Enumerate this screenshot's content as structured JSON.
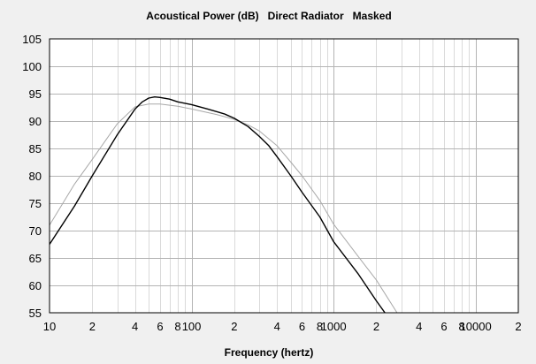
{
  "chart_data": {
    "type": "line",
    "title": "Acoustical Power (dB)   Direct Radiator   Masked",
    "xlabel": "Frequency (hertz)",
    "ylabel": "",
    "xscale": "log",
    "xlim": [
      10,
      20000
    ],
    "ylim": [
      55,
      105
    ],
    "grid": true,
    "y_ticks": [
      55,
      60,
      65,
      70,
      75,
      80,
      85,
      90,
      95,
      100,
      105
    ],
    "x_tick_labels": [
      {
        "value": 10,
        "label": "10"
      },
      {
        "value": 20,
        "label": "2"
      },
      {
        "value": 40,
        "label": "4"
      },
      {
        "value": 60,
        "label": "6"
      },
      {
        "value": 80,
        "label": "8"
      },
      {
        "value": 100,
        "label": "100"
      },
      {
        "value": 200,
        "label": "2"
      },
      {
        "value": 400,
        "label": "4"
      },
      {
        "value": 600,
        "label": "6"
      },
      {
        "value": 800,
        "label": "8"
      },
      {
        "value": 1000,
        "label": "1000"
      },
      {
        "value": 2000,
        "label": "2"
      },
      {
        "value": 4000,
        "label": "4"
      },
      {
        "value": 6000,
        "label": "6"
      },
      {
        "value": 8000,
        "label": "8"
      },
      {
        "value": 10000,
        "label": "10000"
      },
      {
        "value": 20000,
        "label": "2"
      }
    ],
    "series": [
      {
        "color": "#000000",
        "x": [
          10,
          15,
          20,
          30,
          40,
          45,
          50,
          55,
          60,
          70,
          80,
          100,
          130,
          170,
          200,
          250,
          300,
          350,
          400,
          500,
          600,
          800,
          1000,
          1500,
          2000,
          2300
        ],
        "y": [
          67.5,
          74.5,
          80,
          87.5,
          92.2,
          93.5,
          94.2,
          94.4,
          94.3,
          94,
          93.5,
          93,
          92.2,
          91.3,
          90.5,
          89,
          87.2,
          85.5,
          83.5,
          80,
          77,
          72.5,
          68,
          62,
          57.2,
          55
        ]
      },
      {
        "color": "#a8a8a8",
        "x": [
          10,
          15,
          20,
          30,
          40,
          50,
          60,
          80,
          100,
          150,
          200,
          250,
          300,
          400,
          500,
          600,
          800,
          1000,
          1500,
          2000,
          2800
        ],
        "y": [
          71,
          78.5,
          83,
          89.5,
          92.6,
          93.1,
          93.1,
          92.7,
          92.2,
          91.2,
          90.3,
          89.3,
          88.2,
          85.5,
          82.5,
          80,
          75.5,
          71.2,
          65.2,
          61,
          55
        ]
      }
    ]
  }
}
